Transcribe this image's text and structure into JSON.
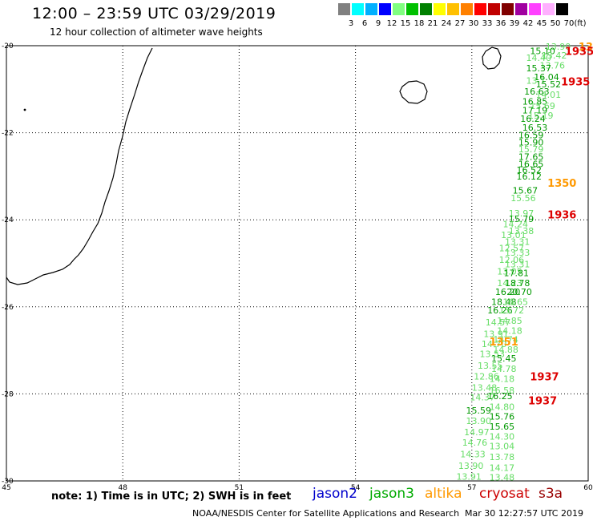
{
  "header": {
    "title": "12:00 – 23:59 UTC 03/29/2019",
    "subtitle": "12 hour collection of altimeter wave heights"
  },
  "legend": {
    "unit": "(ft)",
    "items": [
      {
        "label": "3",
        "color": "#808080"
      },
      {
        "label": "6",
        "color": "#00ffff"
      },
      {
        "label": "9",
        "color": "#00b0ff"
      },
      {
        "label": "12",
        "color": "#0000ff"
      },
      {
        "label": "15",
        "color": "#80ff80"
      },
      {
        "label": "18",
        "color": "#00c000"
      },
      {
        "label": "21",
        "color": "#008000"
      },
      {
        "label": "24",
        "color": "#ffff00"
      },
      {
        "label": "27",
        "color": "#ffc000"
      },
      {
        "label": "30",
        "color": "#ff8000"
      },
      {
        "label": "33",
        "color": "#ff0000"
      },
      {
        "label": "36",
        "color": "#c00000"
      },
      {
        "label": "39",
        "color": "#800000"
      },
      {
        "label": "42",
        "color": "#a000a0"
      },
      {
        "label": "45",
        "color": "#ff40ff"
      },
      {
        "label": "50",
        "color": "#ffb0ff"
      },
      {
        "label": "70",
        "color": "#000000"
      }
    ]
  },
  "map": {
    "lon_labels": [
      "45",
      "48",
      "51",
      "54",
      "57",
      "60"
    ],
    "lat_labels": [
      "-20",
      "-22",
      "-24",
      "-26",
      "-28",
      "-30"
    ],
    "colors": {
      "light_green": "#66dd66",
      "dark_green": "#009900",
      "orange": "#ff9900",
      "red": "#dd0000"
    },
    "observations": [
      {
        "value": "13.90",
        "lon": 58.9,
        "lat": -20.02,
        "c": "light_green"
      },
      {
        "value": "15.10",
        "lon": 58.5,
        "lat": -20.12,
        "c": "dark_green"
      },
      {
        "value": "13.42",
        "lon": 58.8,
        "lat": -20.22,
        "c": "light_green"
      },
      {
        "value": "14.40",
        "lon": 58.4,
        "lat": -20.28,
        "c": "light_green"
      },
      {
        "value": "13.76",
        "lon": 58.75,
        "lat": -20.45,
        "c": "light_green"
      },
      {
        "value": "15.37",
        "lon": 58.4,
        "lat": -20.52,
        "c": "dark_green"
      },
      {
        "value": "16.04",
        "lon": 58.6,
        "lat": -20.72,
        "c": "dark_green"
      },
      {
        "value": "13.1",
        "lon": 58.4,
        "lat": -20.8,
        "c": "light_green"
      },
      {
        "value": "15.52",
        "lon": 58.65,
        "lat": -20.88,
        "c": "dark_green"
      },
      {
        "value": "16.63",
        "lon": 58.35,
        "lat": -21.05,
        "c": "dark_green"
      },
      {
        "value": "14.01",
        "lon": 58.65,
        "lat": -21.12,
        "c": "light_green"
      },
      {
        "value": "16.85",
        "lon": 58.3,
        "lat": -21.28,
        "c": "dark_green"
      },
      {
        "value": "15.69",
        "lon": 58.5,
        "lat": -21.38,
        "c": "light_green"
      },
      {
        "value": "17.19",
        "lon": 58.3,
        "lat": -21.48,
        "c": "dark_green"
      },
      {
        "value": "15.19",
        "lon": 58.45,
        "lat": -21.6,
        "c": "light_green"
      },
      {
        "value": "16.24",
        "lon": 58.25,
        "lat": -21.68,
        "c": "dark_green"
      },
      {
        "value": "16.53",
        "lon": 58.3,
        "lat": -21.88,
        "c": "dark_green"
      },
      {
        "value": "16.59",
        "lon": 58.2,
        "lat": -22.05,
        "c": "dark_green"
      },
      {
        "value": "15.90",
        "lon": 58.2,
        "lat": -22.22,
        "c": "dark_green"
      },
      {
        "value": "15.79",
        "lon": 58.2,
        "lat": -22.38,
        "c": "light_green"
      },
      {
        "value": "17.65",
        "lon": 58.2,
        "lat": -22.55,
        "c": "dark_green"
      },
      {
        "value": "16.65",
        "lon": 58.2,
        "lat": -22.72,
        "c": "dark_green"
      },
      {
        "value": "16.52",
        "lon": 58.15,
        "lat": -22.85,
        "c": "dark_green"
      },
      {
        "value": "16.12",
        "lon": 58.15,
        "lat": -23.0,
        "c": "dark_green"
      },
      {
        "value": "15.67",
        "lon": 58.05,
        "lat": -23.32,
        "c": "dark_green"
      },
      {
        "value": "15.56",
        "lon": 58.0,
        "lat": -23.5,
        "c": "light_green"
      },
      {
        "value": "13.97",
        "lon": 57.95,
        "lat": -23.85,
        "c": "light_green"
      },
      {
        "value": "15.79",
        "lon": 57.95,
        "lat": -23.98,
        "c": "dark_green"
      },
      {
        "value": "14.24",
        "lon": 57.8,
        "lat": -24.1,
        "c": "light_green"
      },
      {
        "value": "13.38",
        "lon": 57.95,
        "lat": -24.25,
        "c": "light_green"
      },
      {
        "value": "13.01",
        "lon": 57.75,
        "lat": -24.35,
        "c": "light_green"
      },
      {
        "value": "13.31",
        "lon": 57.85,
        "lat": -24.5,
        "c": "light_green"
      },
      {
        "value": "12.57",
        "lon": 57.7,
        "lat": -24.65,
        "c": "light_green"
      },
      {
        "value": "13.33",
        "lon": 57.85,
        "lat": -24.75,
        "c": "light_green"
      },
      {
        "value": "12.06",
        "lon": 57.7,
        "lat": -24.92,
        "c": "light_green"
      },
      {
        "value": "13.31",
        "lon": 57.85,
        "lat": -25.02,
        "c": "light_green"
      },
      {
        "value": "13.05",
        "lon": 57.65,
        "lat": -25.18,
        "c": "light_green"
      },
      {
        "value": "17.81",
        "lon": 57.82,
        "lat": -25.22,
        "c": "dark_green"
      },
      {
        "value": "14.23",
        "lon": 57.65,
        "lat": -25.45,
        "c": "light_green"
      },
      {
        "value": "18.78",
        "lon": 57.85,
        "lat": -25.45,
        "c": "dark_green"
      },
      {
        "value": "16.20",
        "lon": 57.6,
        "lat": -25.65,
        "c": "dark_green"
      },
      {
        "value": "20.70",
        "lon": 57.9,
        "lat": -25.65,
        "c": "dark_green"
      },
      {
        "value": "18.48",
        "lon": 57.5,
        "lat": -25.88,
        "c": "dark_green"
      },
      {
        "value": "16.65",
        "lon": 57.8,
        "lat": -25.88,
        "c": "light_green"
      },
      {
        "value": "16.26",
        "lon": 57.4,
        "lat": -26.08,
        "c": "dark_green"
      },
      {
        "value": "15.72",
        "lon": 57.7,
        "lat": -26.08,
        "c": "light_green"
      },
      {
        "value": "14.57",
        "lon": 57.35,
        "lat": -26.35,
        "c": "light_green"
      },
      {
        "value": "14.85",
        "lon": 57.65,
        "lat": -26.32,
        "c": "light_green"
      },
      {
        "value": "14.18",
        "lon": 57.65,
        "lat": -26.55,
        "c": "light_green"
      },
      {
        "value": "13.91",
        "lon": 57.3,
        "lat": -26.62,
        "c": "light_green"
      },
      {
        "value": "14.74",
        "lon": 57.55,
        "lat": -26.75,
        "c": "light_green"
      },
      {
        "value": "14.70",
        "lon": 57.25,
        "lat": -26.85,
        "c": "light_green"
      },
      {
        "value": "14.88",
        "lon": 57.55,
        "lat": -26.98,
        "c": "light_green"
      },
      {
        "value": "13.53",
        "lon": 57.2,
        "lat": -27.08,
        "c": "light_green"
      },
      {
        "value": "15.45",
        "lon": 57.5,
        "lat": -27.18,
        "c": "dark_green"
      },
      {
        "value": "13.55",
        "lon": 57.15,
        "lat": -27.35,
        "c": "light_green"
      },
      {
        "value": "14.78",
        "lon": 57.5,
        "lat": -27.42,
        "c": "light_green"
      },
      {
        "value": "12.86",
        "lon": 57.05,
        "lat": -27.6,
        "c": "light_green"
      },
      {
        "value": "14.18",
        "lon": 57.45,
        "lat": -27.65,
        "c": "light_green"
      },
      {
        "value": "13.48",
        "lon": 57.0,
        "lat": -27.85,
        "c": "light_green"
      },
      {
        "value": "16.58",
        "lon": 57.45,
        "lat": -27.92,
        "c": "light_green"
      },
      {
        "value": "14.37",
        "lon": 56.95,
        "lat": -28.08,
        "c": "light_green"
      },
      {
        "value": "16.25",
        "lon": 57.4,
        "lat": -28.05,
        "c": "dark_green"
      },
      {
        "value": "14.80",
        "lon": 57.45,
        "lat": -28.3,
        "c": "light_green"
      },
      {
        "value": "15.59",
        "lon": 56.85,
        "lat": -28.38,
        "c": "dark_green"
      },
      {
        "value": "15.76",
        "lon": 57.45,
        "lat": -28.52,
        "c": "dark_green"
      },
      {
        "value": "13.90",
        "lon": 56.85,
        "lat": -28.62,
        "c": "light_green"
      },
      {
        "value": "15.65",
        "lon": 57.45,
        "lat": -28.75,
        "c": "dark_green"
      },
      {
        "value": "14.97",
        "lon": 56.8,
        "lat": -28.88,
        "c": "light_green"
      },
      {
        "value": "14.30",
        "lon": 57.45,
        "lat": -28.98,
        "c": "light_green"
      },
      {
        "value": "14.76",
        "lon": 56.75,
        "lat": -29.12,
        "c": "light_green"
      },
      {
        "value": "13.04",
        "lon": 57.45,
        "lat": -29.2,
        "c": "light_green"
      },
      {
        "value": "14.33",
        "lon": 56.7,
        "lat": -29.38,
        "c": "light_green"
      },
      {
        "value": "13.78",
        "lon": 57.45,
        "lat": -29.45,
        "c": "light_green"
      },
      {
        "value": "13.90",
        "lon": 56.65,
        "lat": -29.65,
        "c": "light_green"
      },
      {
        "value": "14.17",
        "lon": 57.45,
        "lat": -29.7,
        "c": "light_green"
      },
      {
        "value": "13.91",
        "lon": 56.6,
        "lat": -29.9,
        "c": "light_green"
      },
      {
        "value": "13.48",
        "lon": 57.45,
        "lat": -29.92,
        "c": "light_green"
      }
    ],
    "pass_labels": [
      {
        "value": "13",
        "lon": 59.75,
        "lat": -20.02,
        "c": "orange"
      },
      {
        "value": "1935",
        "lon": 59.4,
        "lat": -20.12,
        "c": "red"
      },
      {
        "value": "1935",
        "lon": 59.3,
        "lat": -20.82,
        "c": "red"
      },
      {
        "value": "1350",
        "lon": 58.95,
        "lat": -23.15,
        "c": "orange"
      },
      {
        "value": "1936",
        "lon": 58.95,
        "lat": -23.88,
        "c": "red"
      },
      {
        "value": "1351",
        "lon": 57.45,
        "lat": -26.8,
        "c": "orange"
      },
      {
        "value": "1937",
        "lon": 58.5,
        "lat": -27.6,
        "c": "red"
      },
      {
        "value": "1937",
        "lon": 58.45,
        "lat": -28.15,
        "c": "red"
      }
    ]
  },
  "footer": {
    "note": "note: 1) Time is in UTC; 2) SWH is in feet",
    "satellites": [
      {
        "name": "jason2",
        "color": "#0000cc"
      },
      {
        "name": "jason3",
        "color": "#00aa00"
      },
      {
        "name": "altika",
        "color": "#ff9900"
      },
      {
        "name": "cryosat",
        "color": "#cc0000"
      },
      {
        "name": "s3a",
        "color": "#990000"
      }
    ],
    "credit": "NOAA/NESDIS Center for Satellite Applications and Research",
    "timestamp": "Mar 30 12:27:57 UTC 2019"
  }
}
